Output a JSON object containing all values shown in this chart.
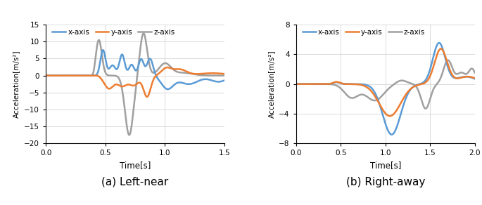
{
  "chart_a": {
    "title": "(a) Left-near",
    "xlabel": "Time[s]",
    "ylabel": "Acceleration[m/s²]",
    "xlim": [
      0,
      1.5
    ],
    "ylim": [
      -20,
      15
    ],
    "yticks": [
      -20,
      -15,
      -10,
      -5,
      0,
      5,
      10,
      15
    ],
    "xticks": [
      0,
      0.5,
      1.0,
      1.5
    ],
    "x_color": "#5B9BD5",
    "y_color": "#ED7D31",
    "z_color": "#A0A0A0"
  },
  "chart_b": {
    "title": "(b) Right-away",
    "xlabel": "Time[s]",
    "ylabel": "Acceleration[m/s²]",
    "xlim": [
      0,
      2.0
    ],
    "ylim": [
      -8,
      8
    ],
    "yticks": [
      -8,
      -4,
      0,
      4,
      8
    ],
    "xticks": [
      0,
      0.5,
      1.0,
      1.5,
      2.0
    ],
    "x_color": "#5B9BD5",
    "y_color": "#ED7D31",
    "z_color": "#A0A0A0"
  },
  "legend_labels": [
    "x-axis",
    "y-axis",
    "z-axis"
  ],
  "line_width": 1.8
}
